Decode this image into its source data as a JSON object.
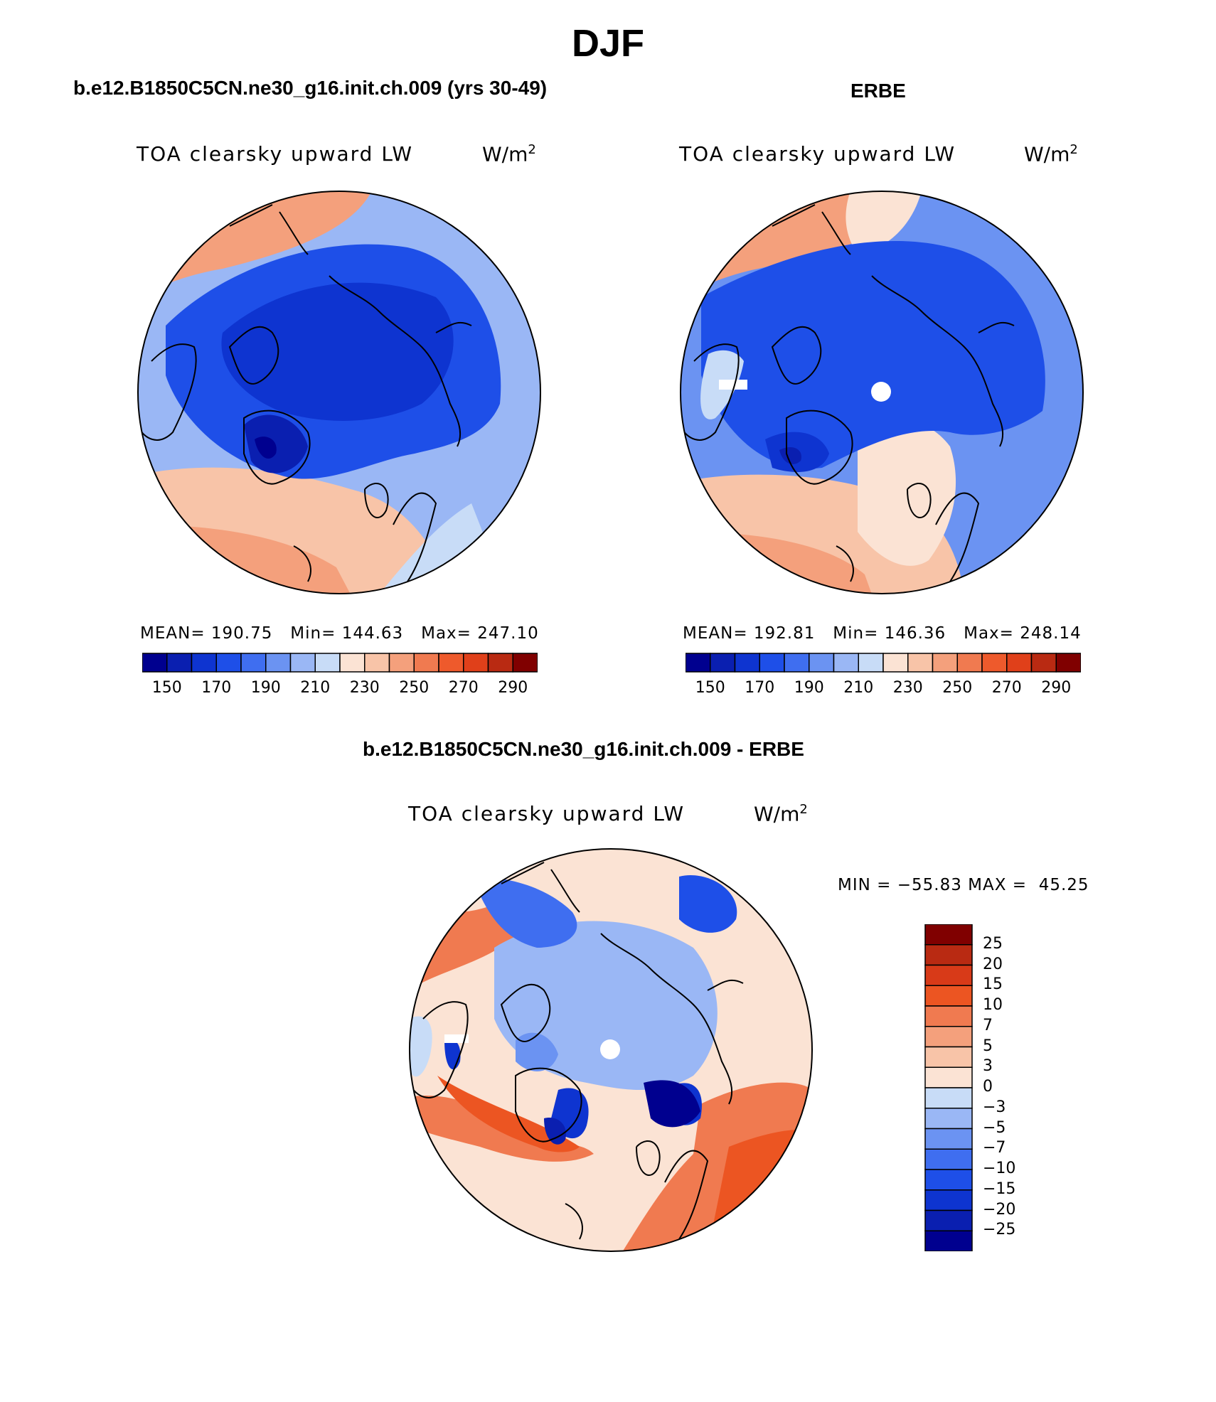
{
  "figure": {
    "title": "DJF"
  },
  "panels": {
    "model": {
      "title": "b.e12.B1850C5CN.ne30_g16.init.ch.009 (yrs 30-49)",
      "variable": "TOA clearsky upward LW",
      "units_base": "W/m",
      "units_exp": "2",
      "stats": "MEAN= 190.75   Min= 144.63   Max= 247.10"
    },
    "obs": {
      "title": "ERBE",
      "variable": "TOA clearsky upward LW",
      "units_base": "W/m",
      "units_exp": "2",
      "stats": "MEAN= 192.81   Min= 146.36   Max= 248.14"
    },
    "diff": {
      "title": "b.e12.B1850C5CN.ne30_g16.init.ch.009 - ERBE",
      "variable": "TOA clearsky upward LW",
      "units_base": "W/m",
      "units_exp": "2",
      "stats": "MIN = −55.83 MAX =  45.25"
    }
  },
  "colorbars": {
    "abs": {
      "ticks": [
        "150",
        "170",
        "190",
        "210",
        "230",
        "250",
        "270",
        "290"
      ],
      "colors": [
        "#00008f",
        "#0a1fb0",
        "#0e34d0",
        "#1e4fe8",
        "#3f6ef0",
        "#6b93f2",
        "#9ab7f5",
        "#c8dcf7",
        "#fbe3d4",
        "#f8c4a8",
        "#f4a07c",
        "#f07a50",
        "#ee5a2c",
        "#e0401a",
        "#b92a12",
        "#800000"
      ]
    },
    "diff": {
      "ticks": [
        "25",
        "20",
        "15",
        "10",
        "7",
        "5",
        "3",
        "0",
        "−3",
        "−5",
        "−7",
        "−10",
        "−15",
        "−20",
        "−25"
      ],
      "colors": [
        "#800000",
        "#b92a12",
        "#d83a18",
        "#ec5522",
        "#f07a50",
        "#f4a07c",
        "#f8c4a8",
        "#fbe3d4",
        "#c8dcf7",
        "#9ab7f5",
        "#6b93f2",
        "#3f6ef0",
        "#1e4fe8",
        "#0e34d0",
        "#0a1fb0",
        "#00008f"
      ]
    }
  },
  "map_colors": {
    "ocean_warm": "#f4a07c",
    "ocean_light": "#fbe3d4",
    "mid_blue": "#3f6ef0",
    "deep_blue": "#0e34d0",
    "darkest_blue": "#00008f",
    "coast": "#000000"
  }
}
